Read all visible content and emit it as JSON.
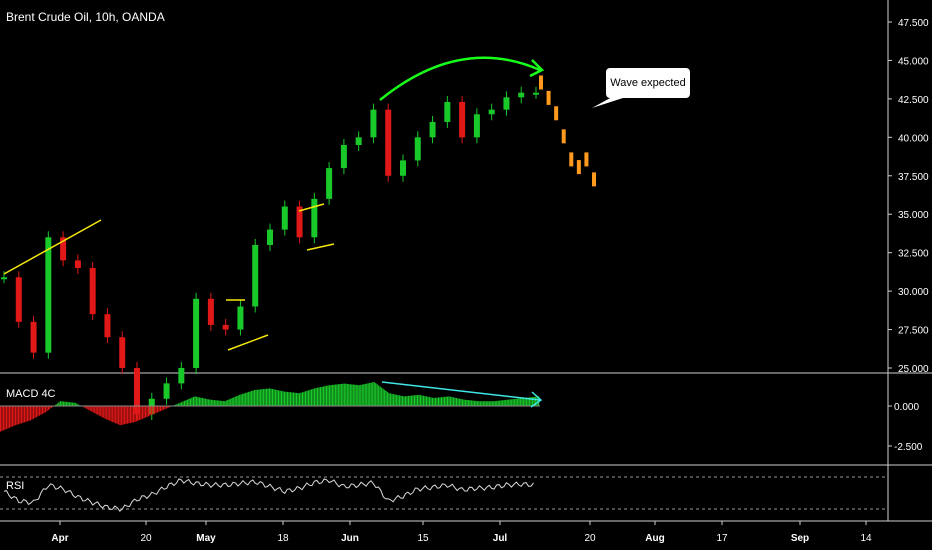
{
  "header": {
    "title": "Brent Crude Oil, 10h, OANDA"
  },
  "panels": {
    "macd_label": "MACD 4C",
    "rsi_label": "RSI"
  },
  "annotation": {
    "text": "Wave expected"
  },
  "colors": {
    "up": "#19c92a",
    "down": "#e01818",
    "projection": "#ff9a1e",
    "yellow": "#f5e90d",
    "green_arrow": "#19ff19",
    "cyan_arrow": "#3fe6e6",
    "rsi_line": "#d9d9d9"
  },
  "chart_data": {
    "type": "line",
    "title": "Brent Crude Oil, 10h, OANDA",
    "price_axis": {
      "ticks": [
        "47.500",
        "45.000",
        "42.500",
        "40.000",
        "37.500",
        "35.000",
        "32.500",
        "30.000",
        "27.500",
        "25.000"
      ],
      "range": [
        25.0,
        47.5
      ]
    },
    "macd_axis": {
      "ticks": [
        "0.000",
        "-2.500"
      ]
    },
    "time_axis": {
      "labels": [
        "Apr",
        "20",
        "May",
        "18",
        "Jun",
        "15",
        "Jul",
        "20",
        "Aug",
        "17",
        "Sep",
        "14"
      ]
    },
    "series": [
      {
        "name": "",
        "x": [
          "Mar 26",
          "Mar 28",
          "Mar 31",
          "Apr 3",
          "Apr 7",
          "Apr 10",
          "Apr 13",
          "Apr 16",
          "Apr 19",
          "Apr 22",
          "Apr 25",
          "Apr 28",
          "May 1",
          "May 3",
          "May 5",
          "May 8",
          "May 11",
          "May 14",
          "May 17",
          "May 20",
          "May 23",
          "May 26",
          "May 29",
          "Jun 1",
          "Jun 4",
          "Jun 7",
          "Jun 9",
          "Jun 11",
          "Jun 13",
          "Jun 15",
          "Jun 18",
          "Jun 21",
          "Jun 24",
          "Jun 27",
          "Jun 30",
          "Jul 3",
          "Jul 6"
        ],
        "values": [
          30.9,
          28.0,
          26.0,
          33.5,
          32.0,
          31.5,
          28.5,
          27.0,
          25.0,
          22.0,
          23.0,
          24.0,
          25.0,
          29.5,
          27.8,
          27.5,
          29.0,
          33.0,
          34.0,
          35.5,
          33.5,
          36.0,
          38.0,
          39.5,
          40.0,
          41.8,
          37.5,
          38.5,
          40.0,
          41.0,
          42.3,
          40.0,
          41.5,
          41.8,
          42.6,
          42.9,
          42.9
        ]
      },
      {
        "name": "",
        "x": [
          "Jul 7",
          "Jul 9",
          "Jul 11",
          "Jul 13",
          "Jul 15",
          "Jul 17",
          "Jul 19",
          "Jul 21"
        ],
        "values": [
          43.5,
          42.5,
          41.5,
          40.0,
          38.5,
          38.0,
          38.5,
          37.2
        ]
      }
    ],
    "macd_values": [
      -1.6,
      -1.2,
      -0.9,
      -0.4,
      0.3,
      0.2,
      -0.3,
      -0.8,
      -1.2,
      -1.0,
      -0.6,
      -0.2,
      0.2,
      0.6,
      0.4,
      0.3,
      0.7,
      1.0,
      1.1,
      0.9,
      0.8,
      1.1,
      1.3,
      1.4,
      1.3,
      1.5,
      0.8,
      0.6,
      0.7,
      0.5,
      0.6,
      0.4,
      0.3,
      0.3,
      0.4,
      0.5,
      0.6
    ],
    "rsi_values": [
      52,
      40,
      38,
      60,
      55,
      45,
      38,
      32,
      30,
      42,
      48,
      58,
      66,
      62,
      60,
      60,
      62,
      64,
      58,
      52,
      56,
      63,
      66,
      58,
      60,
      63,
      40,
      46,
      55,
      57,
      60,
      54,
      56,
      57,
      60,
      61,
      60
    ]
  }
}
